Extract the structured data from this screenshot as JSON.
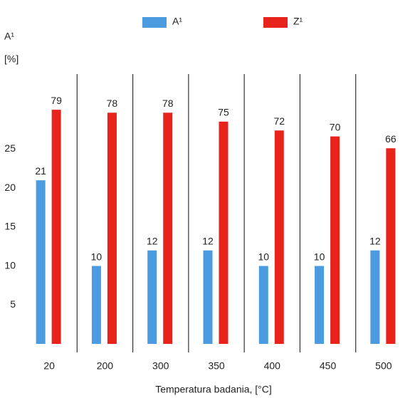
{
  "chart_data": {
    "type": "bar",
    "xlabel": "Temperatura badania, [°C]",
    "ylabel": "A¹",
    "yunit": "[%]",
    "categories": [
      "20",
      "200",
      "300",
      "350",
      "400",
      "450",
      "500"
    ],
    "series": [
      {
        "name": "A¹",
        "color": "#4a9be0",
        "values": [
          21,
          10,
          12,
          12,
          10,
          10,
          12
        ]
      },
      {
        "name": "Z¹",
        "color": "#e8231c",
        "axis": "y2",
        "values": [
          79,
          78,
          78,
          75,
          72,
          70,
          66
        ]
      }
    ],
    "ylim": [
      0,
      35
    ],
    "yticks": [
      5,
      10,
      15,
      20,
      25
    ],
    "y2lim": [
      0,
      92
    ],
    "grid": false,
    "legend": "top"
  }
}
